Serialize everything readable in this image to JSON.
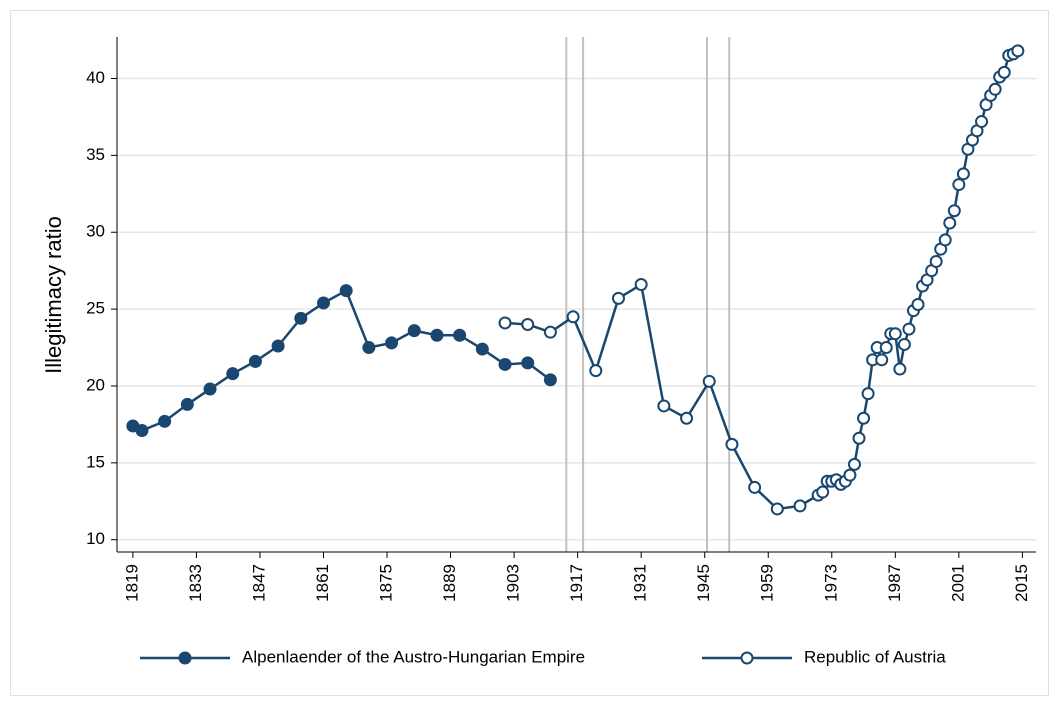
{
  "chart_data": {
    "type": "line",
    "y_label": "Illegitimacy ratio",
    "xlim": [
      1815.5,
      2018
    ],
    "ylim": [
      9.2,
      42.7
    ],
    "xticks": [
      1819,
      1833,
      1847,
      1861,
      1875,
      1889,
      1903,
      1917,
      1931,
      1945,
      1959,
      1973,
      1987,
      2001,
      2015
    ],
    "yticks": [
      10,
      15,
      20,
      25,
      30,
      35,
      40
    ],
    "grid": true,
    "reference_lines": [
      1914.5,
      1918.2,
      1945.5,
      1950.4
    ],
    "legend": "bottom",
    "series": [
      {
        "name": "Alpenlaender of the Austro-Hungarian Empire",
        "color": "#1a476f",
        "marker": "filled",
        "x": [
          1819,
          1821,
          1826,
          1831,
          1836,
          1841,
          1846,
          1851,
          1856,
          1861,
          1866,
          1871,
          1876,
          1881,
          1886,
          1891,
          1896,
          1901,
          1906,
          1911
        ],
        "values": [
          17.4,
          17.1,
          17.7,
          18.8,
          19.8,
          20.8,
          21.6,
          22.6,
          24.4,
          25.4,
          26.2,
          22.5,
          22.8,
          23.6,
          23.3,
          23.3,
          22.4,
          21.4,
          21.5,
          20.4
        ]
      },
      {
        "name": "Republic of Austria",
        "color": "#1a476f",
        "marker": "hollow",
        "x": [
          1901,
          1906,
          1911,
          1916,
          1921,
          1926,
          1931,
          1936,
          1941,
          1946,
          1951,
          1956,
          1961,
          1966,
          1970,
          1971,
          1972,
          1973,
          1974,
          1975,
          1976,
          1977,
          1978,
          1979,
          1980,
          1981,
          1982,
          1983,
          1984,
          1985,
          1986,
          1987,
          1988,
          1989,
          1990,
          1991,
          1992,
          1993,
          1994,
          1995,
          1996,
          1997,
          1998,
          1999,
          2000,
          2001,
          2002,
          2003,
          2004,
          2005,
          2006,
          2007,
          2008,
          2009,
          2010,
          2011,
          2012,
          2013,
          2014
        ],
        "values": [
          24.1,
          24.0,
          23.5,
          24.5,
          21.0,
          25.7,
          26.6,
          18.7,
          17.9,
          20.3,
          16.2,
          13.4,
          12.0,
          12.2,
          12.9,
          13.1,
          13.8,
          13.8,
          13.9,
          13.6,
          13.8,
          14.2,
          14.9,
          16.6,
          17.9,
          19.5,
          21.7,
          22.5,
          21.7,
          22.5,
          23.4,
          23.4,
          21.1,
          22.7,
          23.7,
          24.9,
          25.3,
          26.5,
          26.9,
          27.5,
          28.1,
          28.9,
          29.5,
          30.6,
          31.4,
          33.1,
          33.8,
          35.4,
          36.0,
          36.6,
          37.2,
          38.3,
          38.9,
          39.3,
          40.1,
          40.4,
          41.5,
          41.6,
          41.8
        ]
      }
    ]
  }
}
